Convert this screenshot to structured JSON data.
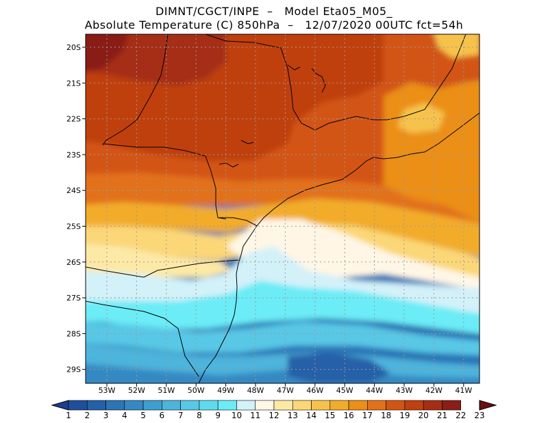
{
  "header": {
    "line1": "DIMNT/CGCT/INPE  –   Model Eta05_M05_",
    "line2": "Absolute Temperature (C) 850hPa  –   12/07/2020 00UTC fct=54h"
  },
  "axes": {
    "lat_labels": [
      "20S",
      "21S",
      "22S",
      "23S",
      "24S",
      "25S",
      "26S",
      "27S",
      "28S",
      "29S"
    ],
    "lon_labels": [
      "53W",
      "52W",
      "51W",
      "50W",
      "49W",
      "48W",
      "47W",
      "46W",
      "45W",
      "44W",
      "43W",
      "42W",
      "41W"
    ]
  },
  "colorbar": {
    "labels": [
      "1",
      "2",
      "3",
      "4",
      "5",
      "6",
      "7",
      "8",
      "9",
      "10",
      "11",
      "12",
      "13",
      "14",
      "15",
      "16",
      "17",
      "18",
      "19",
      "20",
      "21",
      "22",
      "23"
    ],
    "colors": [
      "#1b3f8e",
      "#1f4f9a",
      "#2561a8",
      "#2c75b5",
      "#3589c3",
      "#3e9fcf",
      "#4db4dc",
      "#58c8e6",
      "#5fdbef",
      "#6cecf6",
      "#d3f1f9",
      "#fff6e6",
      "#fde9a6",
      "#fbd777",
      "#f7c24c",
      "#f2ac2b",
      "#eb8f19",
      "#e2711a",
      "#d35513",
      "#c0400f",
      "#a62e14",
      "#8a1f18",
      "#6b0d10"
    ]
  }
}
